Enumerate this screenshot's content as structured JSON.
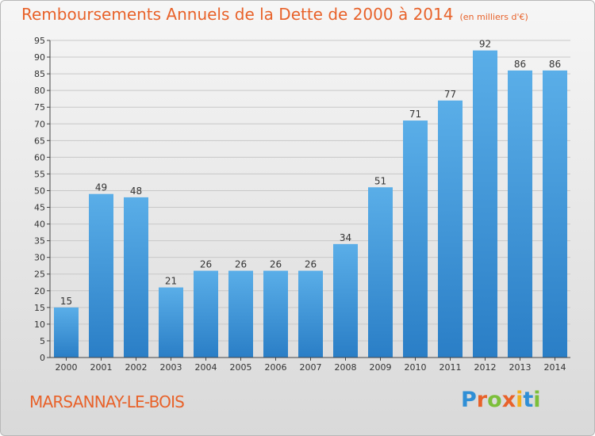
{
  "header": {
    "title": "Remboursements Annuels de la Dette de 2000 à 2014",
    "unit": "(en milliers d'€)"
  },
  "footer": {
    "commune": "MARSANNAY-LE-BOIS",
    "brand_letters": [
      "P",
      "r",
      "o",
      "x",
      "i",
      "t",
      "i"
    ],
    "brand_colors": [
      "#2f8fd6",
      "#e8622a",
      "#7cbf3a",
      "#e8622a",
      "#f2b01c",
      "#2f8fd6",
      "#7cbf3a"
    ]
  },
  "colors": {
    "bar_light": "#5aaee8",
    "bar_dark": "#2a7ec6",
    "title": "#e8622a",
    "grid": "#c8c8c8"
  },
  "chart_data": {
    "type": "bar",
    "categories": [
      "2000",
      "2001",
      "2002",
      "2003",
      "2004",
      "2005",
      "2006",
      "2007",
      "2008",
      "2009",
      "2010",
      "2011",
      "2012",
      "2013",
      "2014"
    ],
    "values": [
      15,
      49,
      48,
      21,
      26,
      26,
      26,
      26,
      34,
      51,
      71,
      77,
      92,
      86,
      86
    ],
    "data_labels": [
      "15",
      "49",
      "48",
      "21",
      "26",
      "26",
      "26",
      "26",
      "34",
      "51",
      "71",
      "77",
      "92",
      "86",
      "86"
    ],
    "title": "Remboursements Annuels de la Dette de 2000 à 2014",
    "xlabel": "",
    "ylabel": "",
    "ylim": [
      0,
      95
    ],
    "yticks": [
      0,
      5,
      10,
      15,
      20,
      25,
      30,
      35,
      40,
      45,
      50,
      55,
      60,
      65,
      70,
      75,
      80,
      85,
      90,
      95
    ],
    "grid": true
  }
}
